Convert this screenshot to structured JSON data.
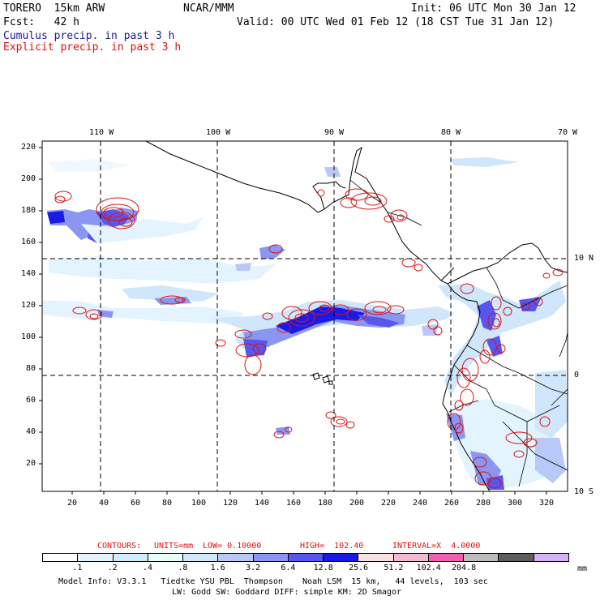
{
  "header": {
    "model": "TORERO  15km ARW",
    "institution": "NCAR/MMM",
    "init": "Init: 06 UTC Mon 30 Jan 12",
    "forecast": "Fcst:   42 h",
    "valid": "Valid: 00 UTC Wed 01 Feb 12 (18 CST Tue 31 Jan 12)",
    "field1": "Cumulus precip. in past 3 h",
    "field2": "Explicit precip. in past 3 h"
  },
  "colors": {
    "field1": "#1a1aa0",
    "field2": "#e01010",
    "contour": "#e01010",
    "grid": "#000000"
  },
  "map": {
    "lon_labels": [
      "110 W",
      "100 W",
      "90 W",
      "80 W",
      "70 W"
    ],
    "lat_labels": [
      "10 N",
      "0",
      "10 S"
    ],
    "y_ticks": [
      "220",
      "200",
      "180",
      "160",
      "140",
      "120",
      "100",
      "80",
      "60",
      "40",
      "20"
    ],
    "x_ticks": [
      "20",
      "40",
      "60",
      "80",
      "100",
      "120",
      "140",
      "160",
      "180",
      "200",
      "220",
      "240",
      "260",
      "280",
      "300",
      "320"
    ]
  },
  "contours": {
    "label": "CONTOURS:",
    "units": "UNITS=mm",
    "low": "LOW= 0.10000",
    "high": "HIGH=  102.40",
    "interval": "INTERVAL=X  4.0000"
  },
  "colorbar": {
    "values": [
      ".1",
      ".2",
      ".4",
      ".8",
      "1.6",
      "3.2",
      "6.4",
      "12.8",
      "25.6",
      "51.2",
      "102.4",
      "204.8"
    ],
    "unit": "mm",
    "colors": [
      "#ffffff",
      "#e4f4ff",
      "#d2ecff",
      "#e6fff9",
      "#cfe6fb",
      "#b8c8f7",
      "#8a96f2",
      "#5757f0",
      "#1a1ae6",
      "#fbe0e0",
      "#f5b7d2",
      "#f25fb0",
      "#bcbcbc",
      "#5e5e5e",
      "#d7b2f5"
    ]
  },
  "footer": {
    "line1": "Model Info: V3.3.1   Tiedtke YSU PBL  Thompson    Noah LSM  15 km,   44 levels,  103 sec",
    "line2": "LW: Godd SW: Goddard DIFF: simple KM: 2D Smagor"
  }
}
